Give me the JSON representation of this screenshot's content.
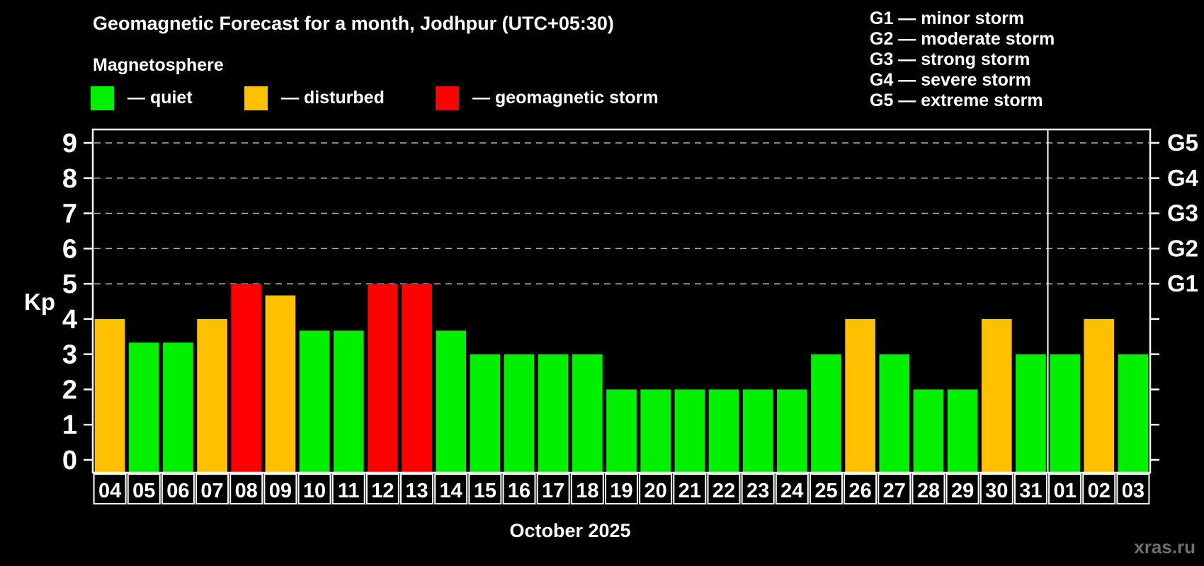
{
  "header": {
    "title": "Geomagnetic Forecast for a month, Jodhpur (UTC+05:30)",
    "subtitle": "Magnetosphere"
  },
  "legend": {
    "items": [
      {
        "name": "quiet",
        "label": "— quiet",
        "color": "#00f000"
      },
      {
        "name": "disturbed",
        "label": "— disturbed",
        "color": "#ffc000"
      },
      {
        "name": "storm",
        "label": "— geomagnetic storm",
        "color": "#ff0000"
      }
    ]
  },
  "g_scale_legend": {
    "items": [
      "G1 — minor storm",
      "G2 — moderate storm",
      "G3 — strong storm",
      "G4 — severe storm",
      "G5 — extreme storm"
    ]
  },
  "chart_data": {
    "type": "bar",
    "title": "Geomagnetic Forecast for a month, Jodhpur (UTC+05:30)",
    "ylabel": "Kp",
    "xlabel": "October 2025",
    "ylim": [
      0,
      9
    ],
    "yticks": [
      0,
      1,
      2,
      3,
      4,
      5,
      6,
      7,
      8,
      9
    ],
    "gridlines_at": [
      5,
      6,
      7,
      8,
      9
    ],
    "grid": "dashed",
    "right_axis": [
      {
        "kp": 5,
        "label": "G1"
      },
      {
        "kp": 6,
        "label": "G2"
      },
      {
        "kp": 7,
        "label": "G3"
      },
      {
        "kp": 8,
        "label": "G4"
      },
      {
        "kp": 9,
        "label": "G5"
      }
    ],
    "categories": [
      "04",
      "05",
      "06",
      "07",
      "08",
      "09",
      "10",
      "11",
      "12",
      "13",
      "14",
      "15",
      "16",
      "17",
      "18",
      "19",
      "20",
      "21",
      "22",
      "23",
      "24",
      "25",
      "26",
      "27",
      "28",
      "29",
      "30",
      "31",
      "01",
      "02",
      "03"
    ],
    "values": [
      4,
      3.33,
      3.33,
      4,
      5,
      4.67,
      3.67,
      3.67,
      5,
      5,
      3.67,
      3,
      3,
      3,
      3,
      2,
      2,
      2,
      2,
      2,
      2,
      3,
      4,
      3,
      2,
      2,
      4,
      3,
      3,
      4,
      3
    ],
    "statuses": [
      "disturbed",
      "quiet",
      "quiet",
      "disturbed",
      "storm",
      "disturbed",
      "quiet",
      "quiet",
      "storm",
      "storm",
      "quiet",
      "quiet",
      "quiet",
      "quiet",
      "quiet",
      "quiet",
      "quiet",
      "quiet",
      "quiet",
      "quiet",
      "quiet",
      "quiet",
      "disturbed",
      "quiet",
      "quiet",
      "quiet",
      "disturbed",
      "quiet",
      "quiet",
      "disturbed",
      "quiet"
    ],
    "colors_by_status": {
      "quiet": "#00f000",
      "disturbed": "#ffc000",
      "storm": "#ff0000"
    },
    "month_separator_after_index": 27
  },
  "footer": {
    "watermark": "xras.ru"
  }
}
